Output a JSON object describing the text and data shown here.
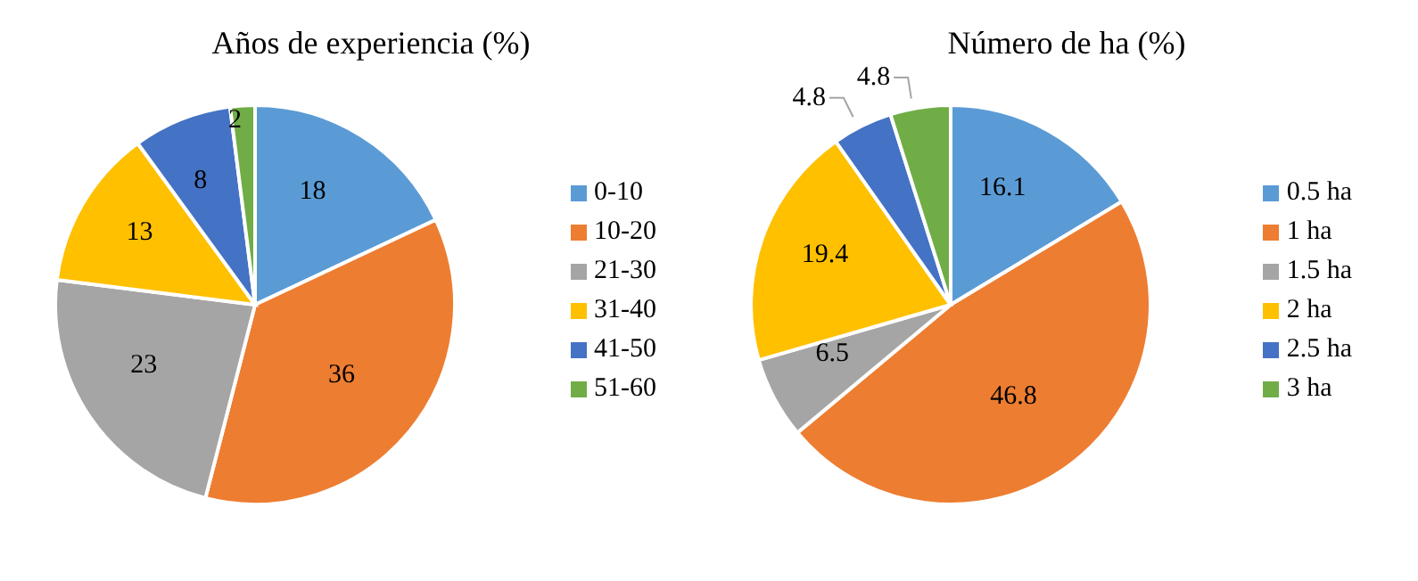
{
  "chart_data": [
    {
      "type": "pie",
      "title": "Años de experiencia (%)",
      "categories": [
        "0-10",
        "10-20",
        "21-30",
        "31-40",
        "41-50",
        "51-60"
      ],
      "values": [
        18,
        36,
        23,
        13,
        8,
        2
      ],
      "colors": [
        "#5b9bd5",
        "#ed7d31",
        "#a5a5a5",
        "#ffc000",
        "#4472c4",
        "#70ad47"
      ],
      "data_labels": true,
      "legend": "right"
    },
    {
      "type": "pie",
      "title": "Número de ha (%)",
      "categories": [
        "0.5 ha",
        "1 ha",
        "1.5 ha",
        "2 ha",
        "2.5 ha",
        "3 ha"
      ],
      "values": [
        16.1,
        46.8,
        6.5,
        19.4,
        4.8,
        4.8
      ],
      "colors": [
        "#5b9bd5",
        "#ed7d31",
        "#a5a5a5",
        "#ffc000",
        "#4472c4",
        "#70ad47"
      ],
      "data_labels": true,
      "legend": "right"
    }
  ]
}
